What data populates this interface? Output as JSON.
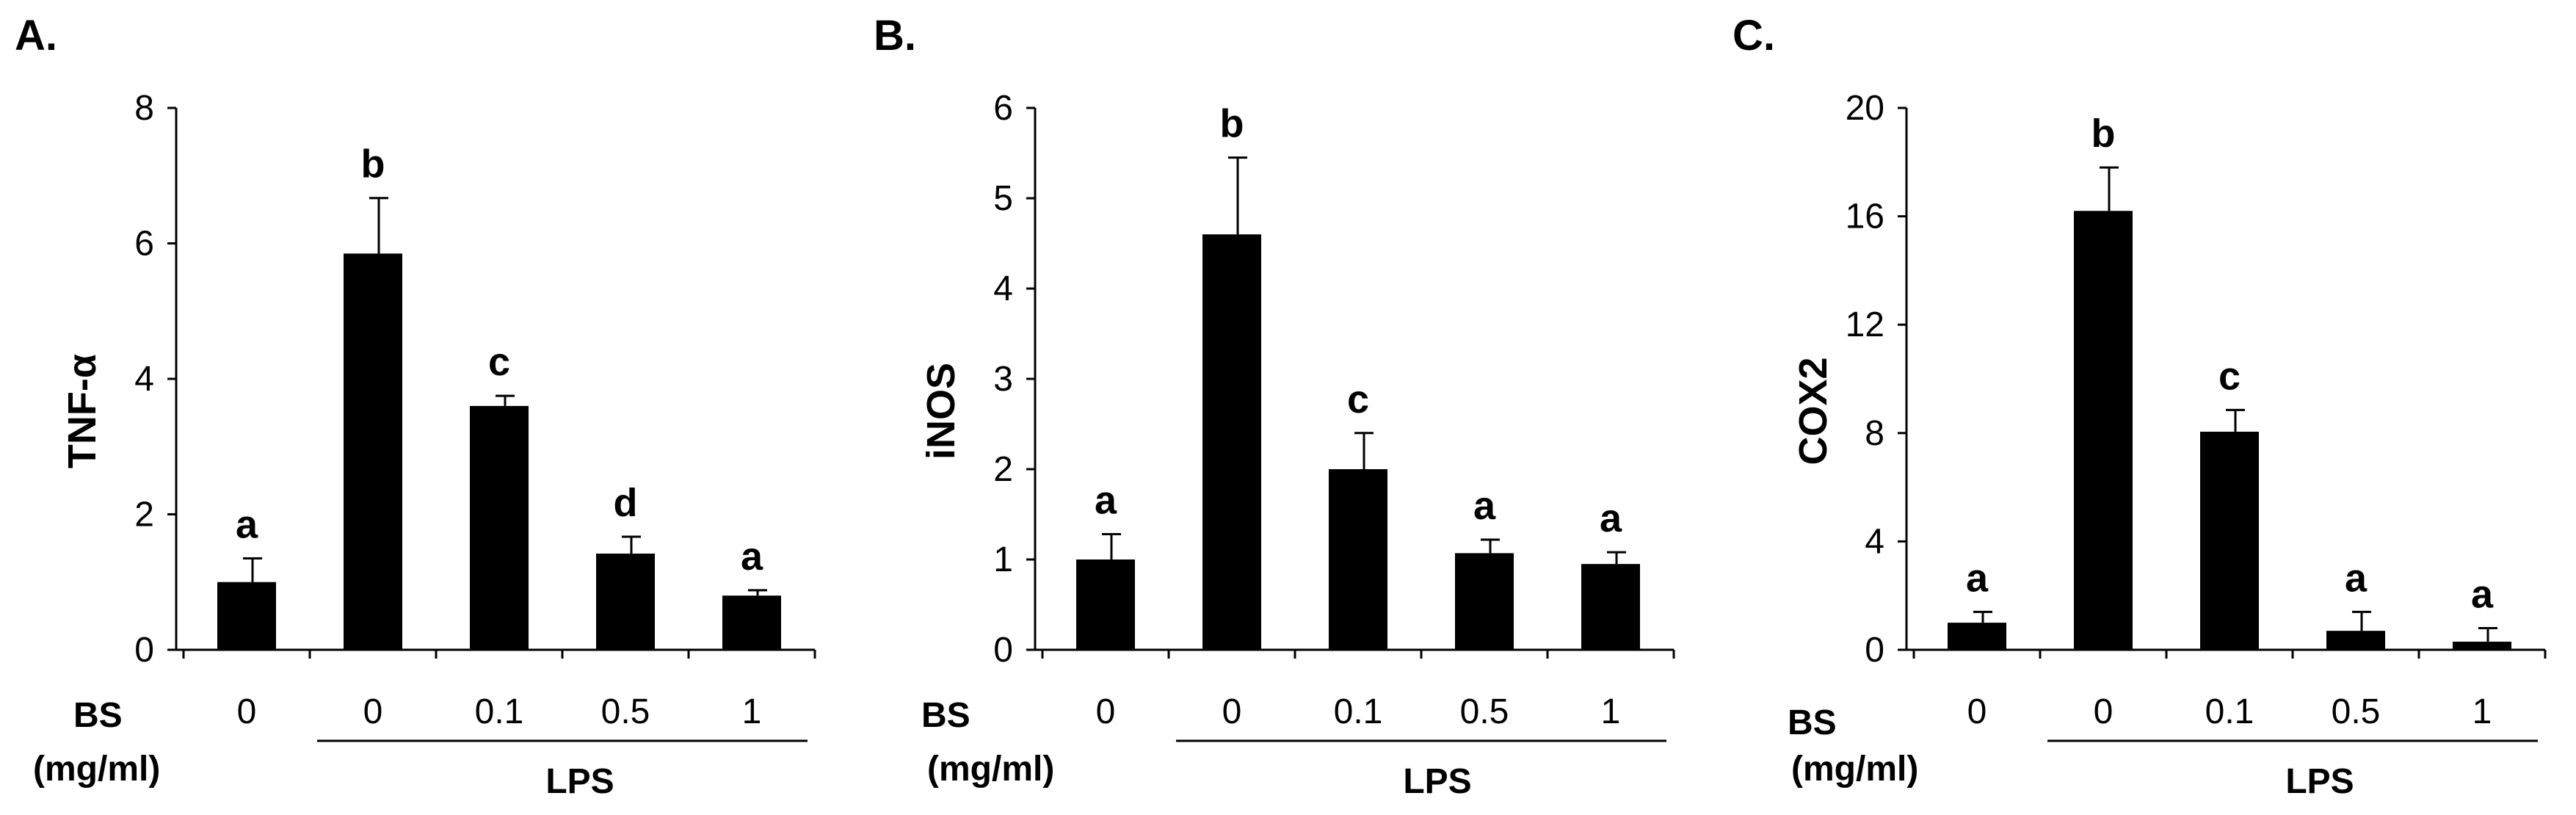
{
  "bs_label": "BS",
  "bs_unit": "(mg/ml)",
  "lps_label": "LPS",
  "colors": {
    "bar": "#000000",
    "axis": "#000000",
    "background": "#ffffff"
  },
  "chart_data": [
    {
      "type": "bar",
      "panel": "A.",
      "ylabel": "TNF-α",
      "ylim": [
        0,
        8
      ],
      "yticks": [
        "0",
        "2",
        "4",
        "6",
        "8"
      ],
      "categories": [
        "0",
        "0",
        "0.1",
        "0.5",
        "1"
      ],
      "values": [
        1.0,
        5.85,
        3.6,
        1.42,
        0.8
      ],
      "errors": [
        0.35,
        0.82,
        0.15,
        0.25,
        0.08
      ],
      "significance": [
        "a",
        "b",
        "c",
        "d",
        "a"
      ],
      "lps_group": [
        1,
        2,
        3,
        4
      ]
    },
    {
      "type": "bar",
      "panel": "B.",
      "ylabel": "iNOS",
      "ylim": [
        0,
        6
      ],
      "yticks": [
        "0",
        "1",
        "2",
        "3",
        "4",
        "5",
        "6"
      ],
      "categories": [
        "0",
        "0",
        "0.1",
        "0.5",
        "1"
      ],
      "values": [
        1.0,
        4.6,
        2.0,
        1.07,
        0.95
      ],
      "errors": [
        0.28,
        0.85,
        0.4,
        0.15,
        0.13
      ],
      "significance": [
        "a",
        "b",
        "c",
        "a",
        "a"
      ],
      "lps_group": [
        1,
        2,
        3,
        4
      ]
    },
    {
      "type": "bar",
      "panel": "C.",
      "ylabel": "COX2",
      "ylim": [
        0,
        20
      ],
      "yticks": [
        "0",
        "4",
        "8",
        "12",
        "16",
        "20"
      ],
      "categories": [
        "0",
        "0",
        "0.1",
        "0.5",
        "1"
      ],
      "values": [
        1.0,
        16.2,
        8.05,
        0.7,
        0.3
      ],
      "errors": [
        0.4,
        1.6,
        0.8,
        0.7,
        0.5
      ],
      "significance": [
        "a",
        "b",
        "c",
        "a",
        "a"
      ],
      "lps_group": [
        1,
        2,
        3,
        4
      ]
    }
  ]
}
